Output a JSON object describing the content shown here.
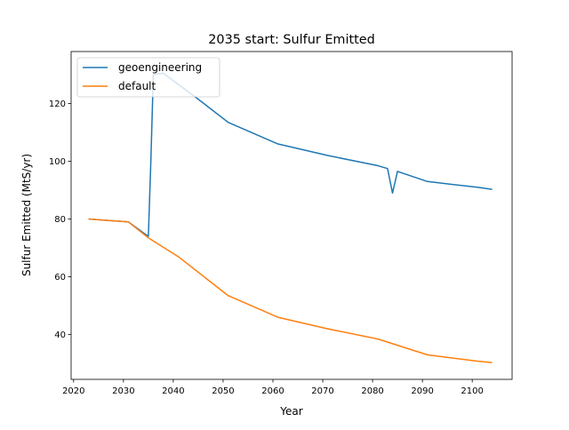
{
  "chart_data": {
    "type": "line",
    "title": "2035 start: Sulfur Emitted",
    "xlabel": "Year",
    "ylabel": "Sulfur Emitted (MtS/yr)",
    "xlim": [
      2019.5,
      2108
    ],
    "ylim": [
      24.5,
      138
    ],
    "xticks": [
      2020,
      2030,
      2040,
      2050,
      2060,
      2070,
      2080,
      2090,
      2100
    ],
    "yticks": [
      40,
      60,
      80,
      100,
      120
    ],
    "grid": false,
    "legend_position": "top-left",
    "series": [
      {
        "name": "geoengineering",
        "color": "#1f77b4",
        "x": [
          2023,
          2031,
          2035,
          2035.5,
          2036,
          2038,
          2045,
          2051,
          2061,
          2071,
          2081,
          2083,
          2084,
          2085,
          2091,
          2101,
          2104
        ],
        "y": [
          80,
          79,
          74,
          100,
          130,
          130.5,
          121.5,
          113.5,
          106,
          102,
          98.5,
          97.5,
          89,
          96.5,
          93,
          91,
          90.3
        ]
      },
      {
        "name": "default",
        "color": "#ff7f0e",
        "x": [
          2023,
          2031,
          2035,
          2041,
          2051,
          2061,
          2071,
          2081,
          2091,
          2101,
          2104
        ],
        "y": [
          80,
          79,
          73.5,
          67,
          53.5,
          46,
          42,
          38.5,
          33,
          30.8,
          30.3
        ]
      }
    ]
  }
}
